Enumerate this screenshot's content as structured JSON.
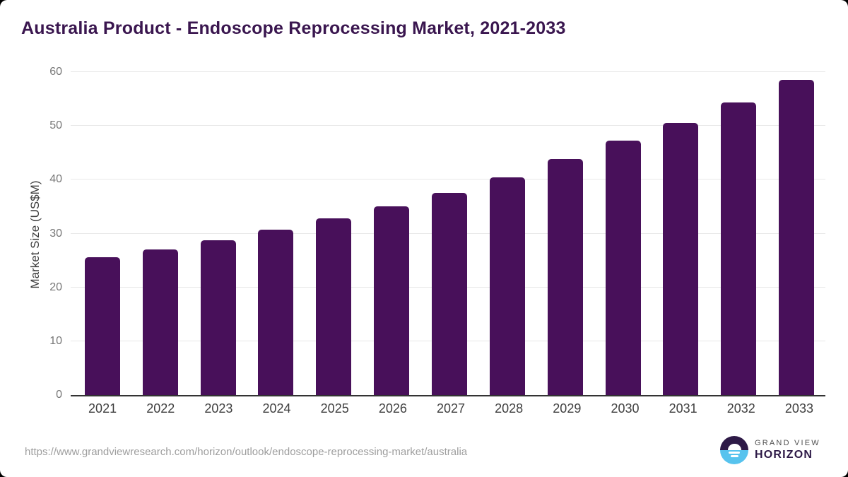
{
  "header": {
    "title": "Australia Product - Endoscope Reprocessing Market, 2021-2033",
    "title_color": "#3a164f"
  },
  "chart_data": {
    "type": "bar",
    "title": "Australia Product - Endoscope Reprocessing Market, 2021-2033",
    "categories": [
      "2021",
      "2022",
      "2023",
      "2024",
      "2025",
      "2026",
      "2027",
      "2028",
      "2029",
      "2030",
      "2031",
      "2032",
      "2033"
    ],
    "values": [
      25.6,
      27.1,
      28.8,
      30.7,
      32.8,
      35.1,
      37.6,
      40.5,
      43.8,
      47.3,
      50.6,
      54.3,
      58.6
    ],
    "xlabel": "",
    "ylabel": "Market Size (US$M)",
    "ylim": [
      0,
      60
    ],
    "yticks": [
      0,
      10,
      20,
      30,
      40,
      50,
      60
    ],
    "grid": "horizontal",
    "legend": "none",
    "bar_color": "#48105a",
    "gridline_color": "#e8e8e8",
    "axis_line_color": "#333333"
  },
  "footer": {
    "source_url": "https://www.grandviewresearch.com/horizon/outlook/endoscope-reprocessing-market/australia",
    "logo": {
      "icon": "sunrise-horizon-icon",
      "brand_top": "GRAND VIEW",
      "brand_bottom": "HORIZON",
      "purple": "#2e1a47",
      "blue": "#57c3ee"
    }
  }
}
